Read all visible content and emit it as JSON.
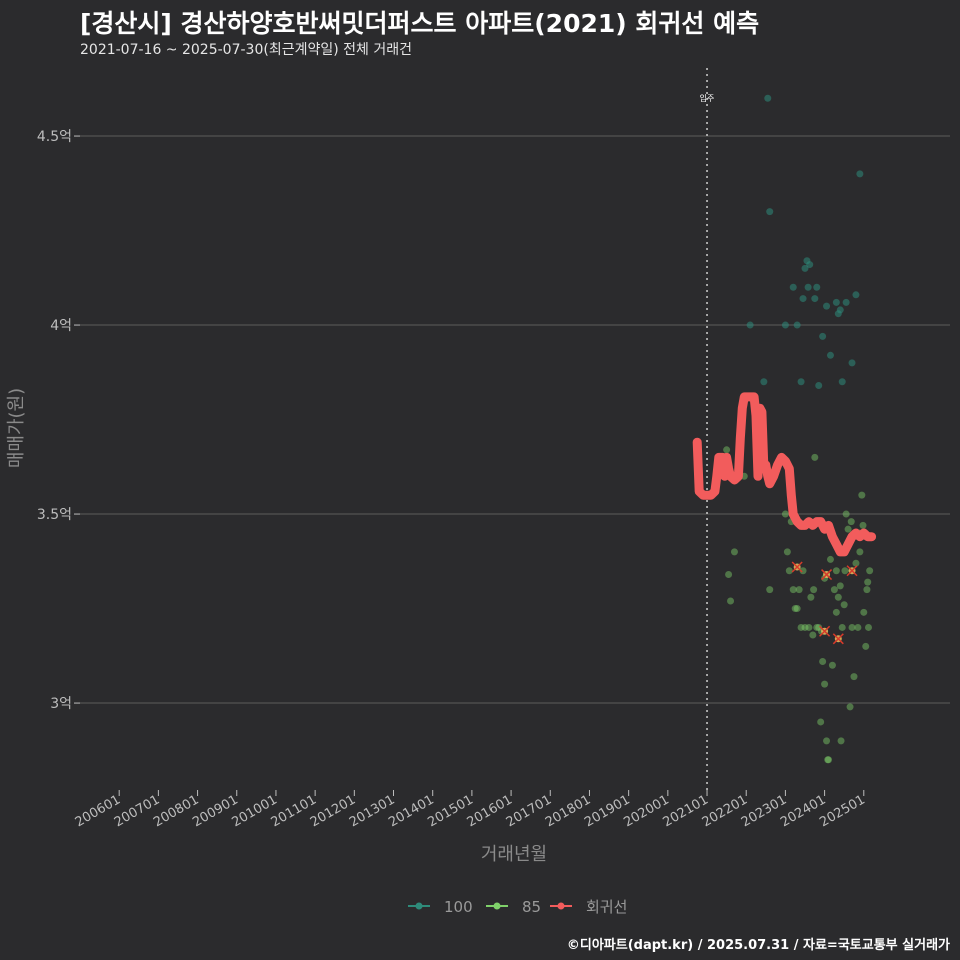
{
  "header": {
    "title": "[경산시] 경산하양호반써밋더퍼스트 아파트(2021) 회귀선 예측",
    "subtitle": "2021-07-16 ~ 2025-07-30(최근계약일) 전체 거래건"
  },
  "footer": {
    "credit": "©디아파트(dapt.kr) / 2025.07.31 / 자료=국토교통부 실거래가"
  },
  "colors": {
    "s100": "#2e8b7a",
    "s85": "#7fd16a",
    "reg": "#f25c5c",
    "grid": "#5c5c5c",
    "xmark": "#d83a2a"
  },
  "chart_data": {
    "type": "scatter",
    "title": "[경산시] 경산하양호반써밋더퍼스트 아파트(2021) 회귀선 예측",
    "xlabel": "거래년월",
    "ylabel": "매매가(원)",
    "xlim": [
      2005.0,
      2027.2
    ],
    "ylim": [
      2.77,
      4.68
    ],
    "y_ticks": [
      {
        "value": 3.0,
        "label": "3억"
      },
      {
        "value": 3.5,
        "label": "3.5억"
      },
      {
        "value": 4.0,
        "label": "4억"
      },
      {
        "value": 4.5,
        "label": "4.5억"
      }
    ],
    "x_ticks": [
      {
        "value": 2006,
        "label": "200601"
      },
      {
        "value": 2007,
        "label": "200701"
      },
      {
        "value": 2008,
        "label": "200801"
      },
      {
        "value": 2009,
        "label": "200901"
      },
      {
        "value": 2010,
        "label": "201001"
      },
      {
        "value": 2011,
        "label": "201101"
      },
      {
        "value": 2012,
        "label": "201201"
      },
      {
        "value": 2013,
        "label": "201301"
      },
      {
        "value": 2014,
        "label": "201401"
      },
      {
        "value": 2015,
        "label": "201501"
      },
      {
        "value": 2016,
        "label": "201601"
      },
      {
        "value": 2017,
        "label": "201701"
      },
      {
        "value": 2018,
        "label": "201801"
      },
      {
        "value": 2019,
        "label": "201901"
      },
      {
        "value": 2020,
        "label": "202001"
      },
      {
        "value": 2021,
        "label": "202101"
      },
      {
        "value": 2022,
        "label": "202201"
      },
      {
        "value": 2023,
        "label": "202301"
      },
      {
        "value": 2024,
        "label": "202401"
      },
      {
        "value": 2025,
        "label": "202501"
      }
    ],
    "annotation": {
      "x": 2021.0,
      "label": "입주"
    },
    "legend": [
      {
        "name": "100",
        "color": "#2e8b7a"
      },
      {
        "name": "85",
        "color": "#7fd16a"
      },
      {
        "name": "회귀선",
        "color": "#f25c5c"
      }
    ],
    "series": [
      {
        "name": "100",
        "points": [
          [
            2022.55,
            4.6
          ],
          [
            2022.6,
            4.3
          ],
          [
            2022.1,
            4.0
          ],
          [
            2022.45,
            3.85
          ],
          [
            2023.0,
            4.0
          ],
          [
            2023.2,
            4.1
          ],
          [
            2023.3,
            4.0
          ],
          [
            2023.5,
            4.15
          ],
          [
            2023.55,
            4.17
          ],
          [
            2023.58,
            4.1
          ],
          [
            2023.62,
            4.16
          ],
          [
            2023.45,
            4.07
          ],
          [
            2023.4,
            3.85
          ],
          [
            2023.75,
            4.07
          ],
          [
            2023.8,
            4.1
          ],
          [
            2023.85,
            3.84
          ],
          [
            2023.95,
            3.97
          ],
          [
            2024.05,
            4.05
          ],
          [
            2024.15,
            3.92
          ],
          [
            2024.3,
            4.06
          ],
          [
            2024.35,
            4.03
          ],
          [
            2024.4,
            4.04
          ],
          [
            2024.45,
            3.85
          ],
          [
            2024.55,
            4.06
          ],
          [
            2024.7,
            3.9
          ],
          [
            2024.8,
            4.08
          ],
          [
            2024.9,
            4.4
          ]
        ]
      },
      {
        "name": "85",
        "points": [
          [
            2021.5,
            3.67
          ],
          [
            2021.55,
            3.34
          ],
          [
            2021.6,
            3.27
          ],
          [
            2021.7,
            3.4
          ],
          [
            2021.95,
            3.6
          ],
          [
            2022.6,
            3.3
          ],
          [
            2023.0,
            3.5
          ],
          [
            2023.05,
            3.4
          ],
          [
            2023.1,
            3.35
          ],
          [
            2023.2,
            3.3
          ],
          [
            2023.25,
            3.25
          ],
          [
            2023.3,
            3.25
          ],
          [
            2023.4,
            3.2
          ],
          [
            2023.45,
            3.35
          ],
          [
            2023.5,
            3.2
          ],
          [
            2023.6,
            3.2
          ],
          [
            2023.65,
            3.28
          ],
          [
            2023.7,
            3.18
          ],
          [
            2023.75,
            3.65
          ],
          [
            2023.8,
            3.2
          ],
          [
            2023.85,
            3.2
          ],
          [
            2023.9,
            2.95
          ],
          [
            2023.95,
            3.11
          ],
          [
            2024.0,
            3.05
          ],
          [
            2024.05,
            2.9
          ],
          [
            2024.1,
            2.85
          ],
          [
            2024.15,
            3.38
          ],
          [
            2024.2,
            3.1
          ],
          [
            2024.25,
            3.3
          ],
          [
            2024.3,
            3.24
          ],
          [
            2024.35,
            3.28
          ],
          [
            2024.4,
            3.31
          ],
          [
            2024.45,
            3.2
          ],
          [
            2024.5,
            3.26
          ],
          [
            2024.55,
            3.5
          ],
          [
            2024.6,
            3.46
          ],
          [
            2024.65,
            2.99
          ],
          [
            2024.7,
            3.2
          ],
          [
            2024.75,
            3.07
          ],
          [
            2024.8,
            3.37
          ],
          [
            2024.85,
            3.2
          ],
          [
            2024.9,
            3.4
          ],
          [
            2024.95,
            3.55
          ],
          [
            2025.0,
            3.24
          ],
          [
            2025.05,
            3.15
          ],
          [
            2025.1,
            3.32
          ],
          [
            2025.12,
            3.2
          ],
          [
            2025.15,
            3.35
          ],
          [
            2024.52,
            3.35
          ],
          [
            2024.42,
            2.9
          ],
          [
            2025.08,
            3.3
          ],
          [
            2023.15,
            3.48
          ],
          [
            2024.98,
            3.47
          ],
          [
            2024.88,
            3.45
          ],
          [
            2024.3,
            3.35
          ],
          [
            2023.92,
            3.19
          ],
          [
            2024.68,
            3.48
          ],
          [
            2023.35,
            3.3
          ],
          [
            2024.0,
            3.33
          ],
          [
            2024.08,
            2.85
          ],
          [
            2023.72,
            3.3
          ]
        ]
      },
      {
        "name": "회귀선",
        "points": [
          [
            2020.75,
            3.69
          ],
          [
            2020.8,
            3.56
          ],
          [
            2020.9,
            3.55
          ],
          [
            2021.0,
            3.55
          ],
          [
            2021.1,
            3.55
          ],
          [
            2021.2,
            3.56
          ],
          [
            2021.25,
            3.6
          ],
          [
            2021.3,
            3.65
          ],
          [
            2021.4,
            3.65
          ],
          [
            2021.45,
            3.6
          ],
          [
            2021.5,
            3.65
          ],
          [
            2021.55,
            3.62
          ],
          [
            2021.6,
            3.6
          ],
          [
            2021.7,
            3.59
          ],
          [
            2021.8,
            3.6
          ],
          [
            2021.85,
            3.7
          ],
          [
            2021.9,
            3.78
          ],
          [
            2021.95,
            3.81
          ],
          [
            2022.0,
            3.81
          ],
          [
            2022.1,
            3.81
          ],
          [
            2022.2,
            3.81
          ],
          [
            2022.25,
            3.76
          ],
          [
            2022.3,
            3.6
          ],
          [
            2022.35,
            3.78
          ],
          [
            2022.4,
            3.77
          ],
          [
            2022.45,
            3.62
          ],
          [
            2022.5,
            3.63
          ],
          [
            2022.55,
            3.6
          ],
          [
            2022.6,
            3.58
          ],
          [
            2022.7,
            3.6
          ],
          [
            2022.8,
            3.63
          ],
          [
            2022.9,
            3.65
          ],
          [
            2023.0,
            3.64
          ],
          [
            2023.1,
            3.62
          ],
          [
            2023.15,
            3.55
          ],
          [
            2023.2,
            3.5
          ],
          [
            2023.3,
            3.48
          ],
          [
            2023.4,
            3.47
          ],
          [
            2023.5,
            3.47
          ],
          [
            2023.6,
            3.48
          ],
          [
            2023.7,
            3.47
          ],
          [
            2023.8,
            3.48
          ],
          [
            2023.9,
            3.48
          ],
          [
            2024.0,
            3.46
          ],
          [
            2024.1,
            3.47
          ],
          [
            2024.2,
            3.44
          ],
          [
            2024.3,
            3.42
          ],
          [
            2024.4,
            3.4
          ],
          [
            2024.5,
            3.4
          ],
          [
            2024.6,
            3.42
          ],
          [
            2024.7,
            3.44
          ],
          [
            2024.8,
            3.45
          ],
          [
            2024.9,
            3.44
          ],
          [
            2025.0,
            3.45
          ],
          [
            2025.1,
            3.44
          ],
          [
            2025.2,
            3.44
          ]
        ]
      }
    ],
    "highlighted_points": [
      [
        2023.3,
        3.36
      ],
      [
        2024.05,
        3.34
      ],
      [
        2024.7,
        3.35
      ],
      [
        2024.0,
        3.19
      ],
      [
        2024.35,
        3.17
      ]
    ]
  }
}
